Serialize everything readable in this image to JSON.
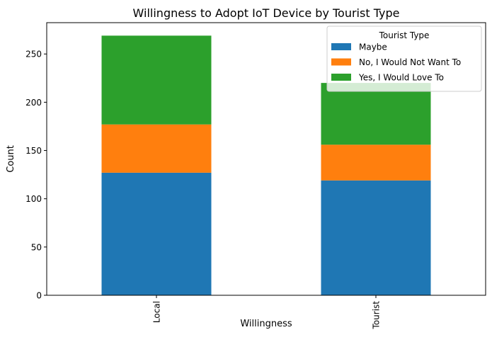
{
  "chart_data": {
    "type": "bar",
    "stacked": true,
    "title": "Willingness to Adopt IoT Device by Tourist Type",
    "xlabel": "Willingness",
    "ylabel": "Count",
    "categories": [
      "Local",
      "Tourist"
    ],
    "series": [
      {
        "name": "Maybe",
        "color": "#1f77b4",
        "values": [
          127,
          119
        ]
      },
      {
        "name": "No, I Would Not Want To",
        "color": "#ff7f0e",
        "values": [
          50,
          37
        ]
      },
      {
        "name": "Yes, I Would Love To",
        "color": "#2ca02c",
        "values": [
          92,
          64
        ]
      }
    ],
    "ylim": [
      0,
      282.45
    ],
    "yticks": [
      0,
      50,
      100,
      150,
      200,
      250
    ],
    "legend": {
      "title": "Tourist Type",
      "position": "top-right"
    },
    "grid": false
  }
}
